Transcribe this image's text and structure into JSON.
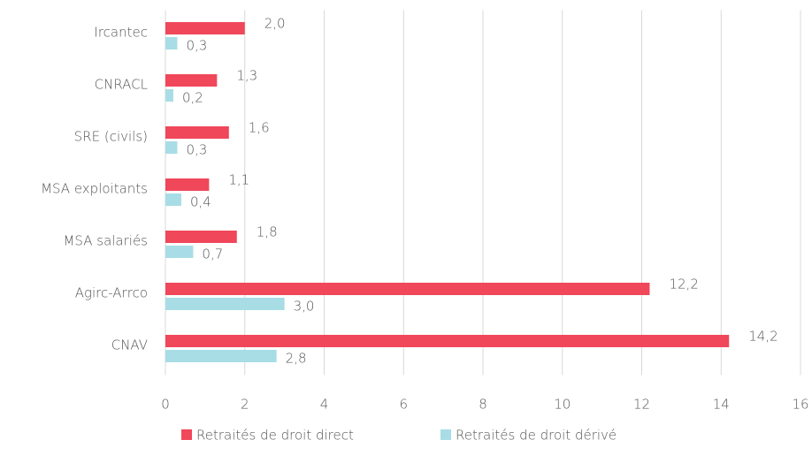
{
  "chart_data": {
    "type": "hbar",
    "categories": [
      "Ircantec",
      "CNRACL",
      "SRE (civils)",
      "MSA exploitants",
      "MSA salariés",
      "Agirc-Arrco",
      "CNAV"
    ],
    "series": [
      {
        "name": "Retraités de droit direct",
        "color": "#f0475a",
        "values": [
          2.0,
          1.3,
          1.6,
          1.1,
          1.8,
          12.2,
          14.2
        ],
        "value_labels": [
          "2,0",
          "1,3",
          "1,6",
          "1,1",
          "1,8",
          "12,2",
          "14,2"
        ]
      },
      {
        "name": "Retraités de droit dérivé",
        "color": "#a8dde6",
        "values": [
          0.3,
          0.2,
          0.3,
          0.4,
          0.7,
          3.0,
          2.8
        ],
        "value_labels": [
          "0,3",
          "0,2",
          "0,3",
          "0,4",
          "0,7",
          "3,0",
          "2,8"
        ]
      }
    ],
    "xlim": [
      0,
      16
    ],
    "xticks": [
      0,
      2,
      4,
      6,
      8,
      10,
      12,
      14,
      16
    ],
    "grid": true
  }
}
